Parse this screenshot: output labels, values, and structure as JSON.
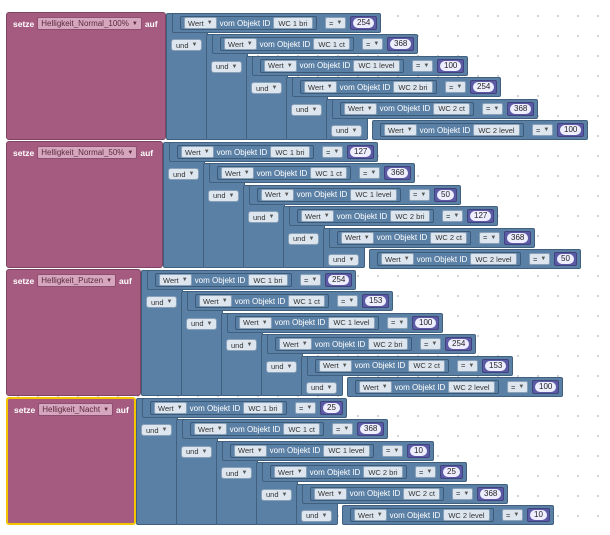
{
  "labels": {
    "setze": "setze",
    "auf": "auf",
    "und": "und",
    "wert": "Wert",
    "vom_objekt_id": "vom Objekt ID",
    "op": "="
  },
  "colors": {
    "variable_block": "#a55b80",
    "logic_block": "#5b80a5",
    "number_block": "#5b5ba5",
    "selected_outline": "#f5c400"
  },
  "icons": {
    "dropdown": "chevron-down-icon"
  },
  "blocks": [
    {
      "variable": "Helligkeit_Normal_100%",
      "selected": false,
      "conditions": [
        {
          "object_id": "WC 1 bri",
          "value": "254"
        },
        {
          "object_id": "WC 1 ct",
          "value": "368"
        },
        {
          "object_id": "WC 1 level",
          "value": "100"
        },
        {
          "object_id": "WC 2 bri",
          "value": "254"
        },
        {
          "object_id": "WC 2 ct",
          "value": "368"
        },
        {
          "object_id": "WC 2 level",
          "value": "100"
        }
      ]
    },
    {
      "variable": "Helligkeit_Normal_50%",
      "selected": false,
      "conditions": [
        {
          "object_id": "WC 1 bri",
          "value": "127"
        },
        {
          "object_id": "WC 1 ct",
          "value": "368"
        },
        {
          "object_id": "WC 1 level",
          "value": "50"
        },
        {
          "object_id": "WC 2 bri",
          "value": "127"
        },
        {
          "object_id": "WC 2 ct",
          "value": "368"
        },
        {
          "object_id": "WC 2 level",
          "value": "50"
        }
      ]
    },
    {
      "variable": "Helligkeit_Putzen",
      "selected": false,
      "conditions": [
        {
          "object_id": "WC 1 bri",
          "value": "254"
        },
        {
          "object_id": "WC 1 ct",
          "value": "153"
        },
        {
          "object_id": "WC 1 level",
          "value": "100"
        },
        {
          "object_id": "WC 2 bri",
          "value": "254"
        },
        {
          "object_id": "WC 2 ct",
          "value": "153"
        },
        {
          "object_id": "WC 2 level",
          "value": "100"
        }
      ]
    },
    {
      "variable": "Helligkeit_Nacht",
      "selected": true,
      "conditions": [
        {
          "object_id": "WC 1 bri",
          "value": "25"
        },
        {
          "object_id": "WC 1 ct",
          "value": "368"
        },
        {
          "object_id": "WC 1 level",
          "value": "10"
        },
        {
          "object_id": "WC 2 bri",
          "value": "25"
        },
        {
          "object_id": "WC 2 ct",
          "value": "368"
        },
        {
          "object_id": "WC 2 level",
          "value": "10"
        }
      ]
    }
  ]
}
